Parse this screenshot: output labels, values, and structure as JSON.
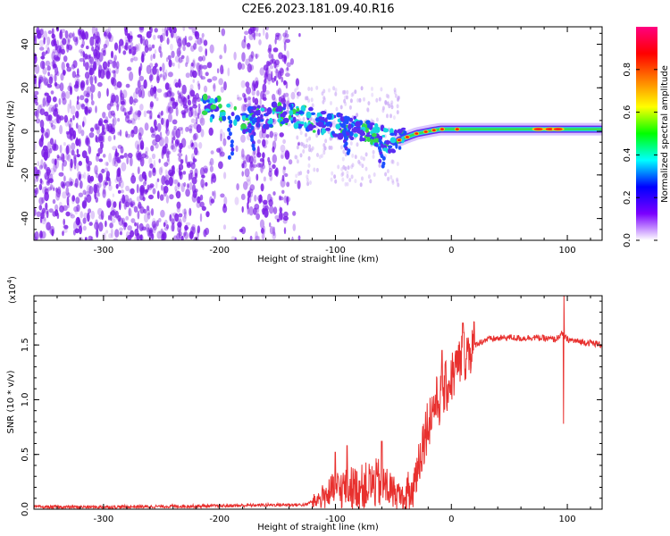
{
  "title": "C2E6.2023.181.09.40.R16",
  "colors": {
    "trace": "#e8302e",
    "speckle": "#7a1be6",
    "frame": "#000000"
  },
  "colorbar": {
    "label": "Normalized spectral amplitude",
    "ticks": [
      "0.0",
      "0.2",
      "0.4",
      "0.6",
      "0.8"
    ],
    "range": [
      0,
      1
    ],
    "stops": [
      "#ffffff",
      "#7a00ff",
      "#0000ff",
      "#00ffff",
      "#00ff00",
      "#ffff00",
      "#ff8000",
      "#ff0000",
      "#ff0080"
    ]
  },
  "chart_data": [
    {
      "type": "heatmap",
      "xlabel": "Height of straight line (km)",
      "ylabel": "Frequency (Hz)",
      "xlim": [
        -360,
        130
      ],
      "ylim": [
        -50,
        48
      ],
      "xticks": [
        "-300",
        "-200",
        "-100",
        "0",
        "100"
      ],
      "yticks": [
        "-40",
        "-20",
        "0",
        "20",
        "40"
      ],
      "ridge": {
        "x": [
          -215,
          -205,
          -195,
          -185,
          -178,
          -170,
          -160,
          -150,
          -140,
          -130,
          -120,
          -110,
          -100,
          -90,
          -80,
          -70,
          -60,
          -50,
          -40,
          -30,
          -20,
          -10,
          0,
          20,
          40,
          60,
          80,
          100,
          120
        ],
        "y": [
          12,
          10,
          10,
          6,
          4,
          8,
          6,
          8,
          8,
          7,
          5,
          4,
          3,
          2,
          1,
          -1,
          -3,
          -5,
          -3,
          -1,
          0,
          1,
          1,
          1,
          1,
          1,
          1,
          1,
          1
        ]
      }
    },
    {
      "type": "line",
      "xlabel": "Height of straight line (km)",
      "ylabel": "SNR (10 * v/v)",
      "scale_label": "(x10",
      "scale_exp": "4",
      "scale_close": ")",
      "xlim": [
        -360,
        130
      ],
      "ylim": [
        0,
        1.95
      ],
      "xticks": [
        "-300",
        "-200",
        "-100",
        "0",
        "100"
      ],
      "yticks": [
        "0.0",
        "0.5",
        "1.0",
        "1.5"
      ],
      "series": [
        {
          "x": [
            -360,
            -300,
            -200,
            -150,
            -125,
            -110,
            -100,
            -90,
            -80,
            -70,
            -60,
            -50,
            -40,
            -35,
            -30,
            -25,
            -20,
            -15,
            -10,
            -5,
            0,
            5,
            10,
            20,
            30,
            40,
            50,
            60,
            70,
            80,
            90,
            95,
            100,
            110,
            120,
            130
          ],
          "y": [
            0.02,
            0.02,
            0.03,
            0.04,
            0.04,
            0.15,
            0.22,
            0.25,
            0.25,
            0.28,
            0.3,
            0.2,
            0.12,
            0.1,
            0.35,
            0.6,
            0.8,
            0.95,
            1.0,
            1.1,
            1.2,
            1.3,
            1.4,
            1.5,
            1.55,
            1.56,
            1.57,
            1.56,
            1.57,
            1.56,
            1.55,
            1.6,
            1.55,
            1.53,
            1.52,
            1.5
          ]
        }
      ],
      "spikes": [
        {
          "x": -100,
          "y": 0.52
        },
        {
          "x": -90,
          "y": 0.58
        },
        {
          "x": -60,
          "y": 0.62
        },
        {
          "x": -8,
          "y": 1.45
        },
        {
          "x": 10,
          "y": 1.7
        },
        {
          "x": 97,
          "y": 1.95
        }
      ]
    }
  ]
}
